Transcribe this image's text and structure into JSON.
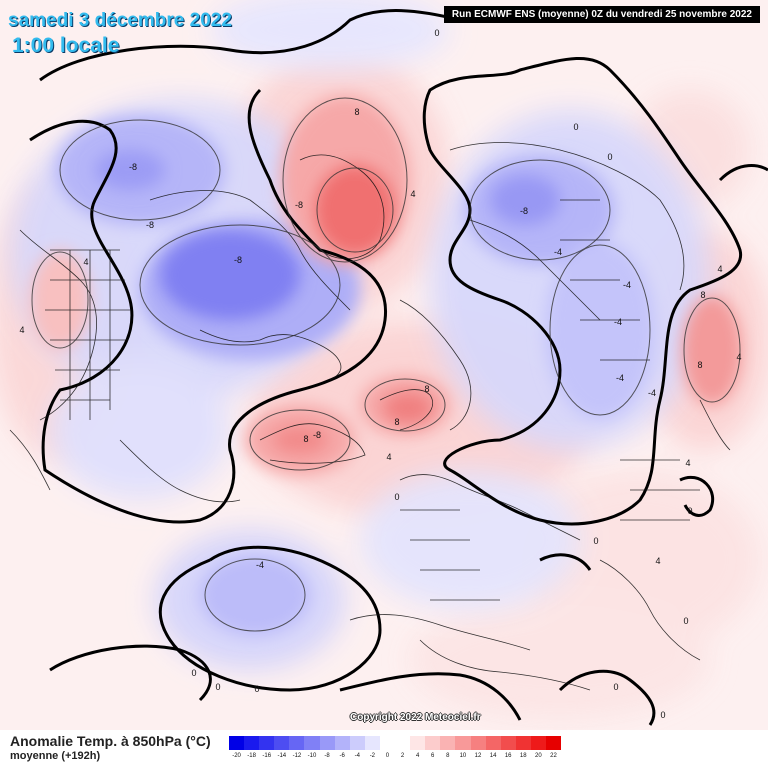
{
  "header": {
    "date_line": "samedi 3 décembre 2022",
    "time_line": "1:00 locale",
    "run_info": "Run ECMWF ENS (moyenne) 0Z du vendredi 25 novembre 2022"
  },
  "watermark": "Copyright 2022 Meteociel.fr",
  "legend": {
    "title": "Anomalie Temp. à 850hPa (°C)",
    "subtitle": "moyenne  (+192h)",
    "ticks": [
      "-20",
      "-18",
      "-16",
      "-14",
      "-12",
      "-10",
      "-8",
      "-6",
      "-4",
      "-2",
      "0",
      "2",
      "4",
      "6",
      "8",
      "10",
      "12",
      "14",
      "16",
      "18",
      "20",
      "22"
    ],
    "colors": [
      "#0000e6",
      "#1a1aee",
      "#3333f0",
      "#4d4df2",
      "#6666f4",
      "#8080f6",
      "#9999f8",
      "#b3b3fa",
      "#ccccfc",
      "#e6e6fe",
      "#ffffff",
      "#ffffff",
      "#fee6e6",
      "#fccccc",
      "#fab3b3",
      "#f89999",
      "#f68080",
      "#f46666",
      "#f24d4d",
      "#f03333",
      "#ee1a1a",
      "#e60000"
    ]
  },
  "contour_labels": [
    {
      "text": "0",
      "pos": [
        437,
        36
      ]
    },
    {
      "text": "8",
      "pos": [
        357,
        115
      ]
    },
    {
      "text": "-8",
      "pos": [
        133,
        170
      ]
    },
    {
      "text": "-8",
      "pos": [
        150,
        228
      ]
    },
    {
      "text": "-8",
      "pos": [
        238,
        263
      ]
    },
    {
      "text": "-8",
      "pos": [
        299,
        208
      ]
    },
    {
      "text": "4",
      "pos": [
        413,
        197
      ]
    },
    {
      "text": "0",
      "pos": [
        576,
        130
      ]
    },
    {
      "text": "0",
      "pos": [
        610,
        160
      ]
    },
    {
      "text": "-8",
      "pos": [
        524,
        214
      ]
    },
    {
      "text": "4",
      "pos": [
        86,
        265
      ]
    },
    {
      "text": "4",
      "pos": [
        22,
        333
      ]
    },
    {
      "text": "-4",
      "pos": [
        558,
        255
      ]
    },
    {
      "text": "-4",
      "pos": [
        627,
        288
      ]
    },
    {
      "text": "4",
      "pos": [
        720,
        272
      ]
    },
    {
      "text": "8",
      "pos": [
        703,
        298
      ]
    },
    {
      "text": "4",
      "pos": [
        739,
        360
      ]
    },
    {
      "text": "8",
      "pos": [
        700,
        368
      ]
    },
    {
      "text": "-4",
      "pos": [
        618,
        325
      ]
    },
    {
      "text": "-4",
      "pos": [
        620,
        381
      ]
    },
    {
      "text": "-4",
      "pos": [
        652,
        396
      ]
    },
    {
      "text": "8",
      "pos": [
        427,
        392
      ]
    },
    {
      "text": "8",
      "pos": [
        397,
        425
      ]
    },
    {
      "text": "-8",
      "pos": [
        317,
        438
      ]
    },
    {
      "text": "8",
      "pos": [
        306,
        442
      ]
    },
    {
      "text": "4",
      "pos": [
        389,
        460
      ]
    },
    {
      "text": "4",
      "pos": [
        688,
        466
      ]
    },
    {
      "text": "0",
      "pos": [
        397,
        500
      ]
    },
    {
      "text": "0",
      "pos": [
        690,
        514
      ]
    },
    {
      "text": "0",
      "pos": [
        596,
        544
      ]
    },
    {
      "text": "-4",
      "pos": [
        260,
        568
      ]
    },
    {
      "text": "4",
      "pos": [
        658,
        564
      ]
    },
    {
      "text": "0",
      "pos": [
        686,
        624
      ]
    },
    {
      "text": "0",
      "pos": [
        194,
        676
      ]
    },
    {
      "text": "0",
      "pos": [
        218,
        690
      ]
    },
    {
      "text": "0",
      "pos": [
        257,
        692
      ]
    },
    {
      "text": "0",
      "pos": [
        616,
        690
      ]
    },
    {
      "text": "0",
      "pos": [
        663,
        718
      ]
    }
  ]
}
